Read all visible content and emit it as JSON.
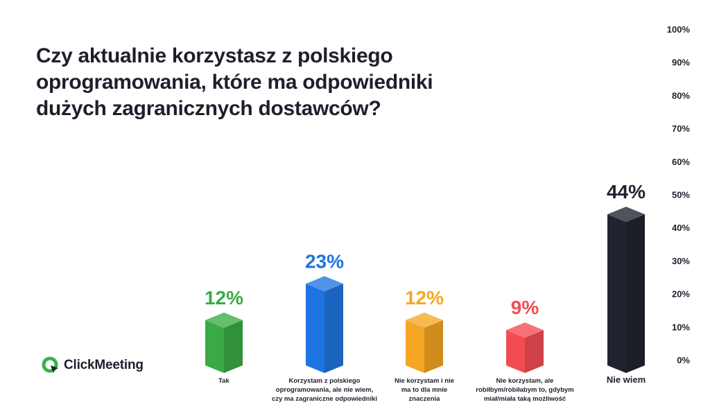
{
  "title": "Czy aktualnie korzystasz z polskiego oprogramowania, które ma odpowiedniki dużych zagranicznych dostawców?",
  "brand": {
    "name": "ClickMeeting",
    "accent": "#36b24a",
    "icon": "clickmeeting-logo-icon"
  },
  "chart_data": {
    "type": "bar",
    "title": "Czy aktualnie korzystasz z polskiego oprogramowania, które ma odpowiedniki dużych zagranicznych dostawców?",
    "categories": [
      [
        "Tak"
      ],
      [
        "Korzystam z polskiego",
        "oprogramowania, ale nie wiem,",
        "czy ma zagraniczne odpowiedniki"
      ],
      [
        "Nie korzystam i nie",
        "ma to dla mnie",
        "znaczenia"
      ],
      [
        "Nie korzystam, ale",
        "robiłbym/robiłabym to, gdybym",
        "miał/miała taką możliwość"
      ],
      [
        "Nie wiem"
      ]
    ],
    "values": [
      12,
      23,
      12,
      9,
      44
    ],
    "value_labels": [
      "12%",
      "23%",
      "12%",
      "9%",
      "44%"
    ],
    "colors": [
      "#3aaa45",
      "#1e74e0",
      "#f5a623",
      "#f24c52",
      "#20232d"
    ],
    "y_ticks": [
      "0%",
      "10%",
      "20%",
      "30%",
      "40%",
      "50%",
      "60%",
      "70%",
      "80%",
      "90%",
      "100%"
    ],
    "ylim": [
      0,
      100
    ],
    "xlabel": "",
    "ylabel": "",
    "grid": false,
    "legend": "none"
  }
}
